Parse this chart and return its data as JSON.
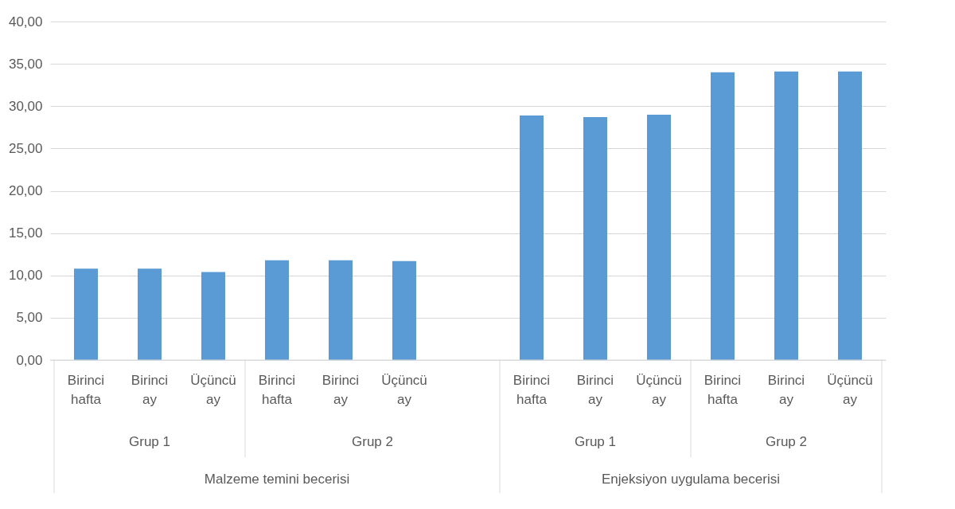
{
  "chart_data": {
    "type": "bar",
    "categories": [
      "Birinci hafta",
      "Birinci ay",
      "Üçüncü ay",
      "Birinci hafta",
      "Birinci ay",
      "Üçüncü ay",
      null,
      "Birinci hafta",
      "Birinci ay",
      "Üçüncü ay",
      "Birinci hafta",
      "Birinci ay",
      "Üçüncü ay"
    ],
    "values": [
      10.8,
      10.8,
      10.4,
      11.8,
      11.8,
      11.7,
      null,
      28.9,
      28.7,
      29.0,
      34.0,
      34.1,
      34.1
    ],
    "color": "#5b9bd5",
    "ylim": [
      0,
      40
    ],
    "yticks": [
      {
        "value": 0,
        "label": "0,00"
      },
      {
        "value": 5,
        "label": "5,00"
      },
      {
        "value": 10,
        "label": "10,00"
      },
      {
        "value": 15,
        "label": "15,00"
      },
      {
        "value": 20,
        "label": "20,00"
      },
      {
        "value": 25,
        "label": "25,00"
      },
      {
        "value": 30,
        "label": "30,00"
      },
      {
        "value": 35,
        "label": "35,00"
      },
      {
        "value": 40,
        "label": "40,00"
      }
    ],
    "grid": "y",
    "annotations": [
      "Grup 1",
      "Grup 2",
      "Grup 1",
      "Grup 2",
      "Malzeme temini becerisi",
      "Enjeksiyon uygulama becerisi"
    ]
  }
}
